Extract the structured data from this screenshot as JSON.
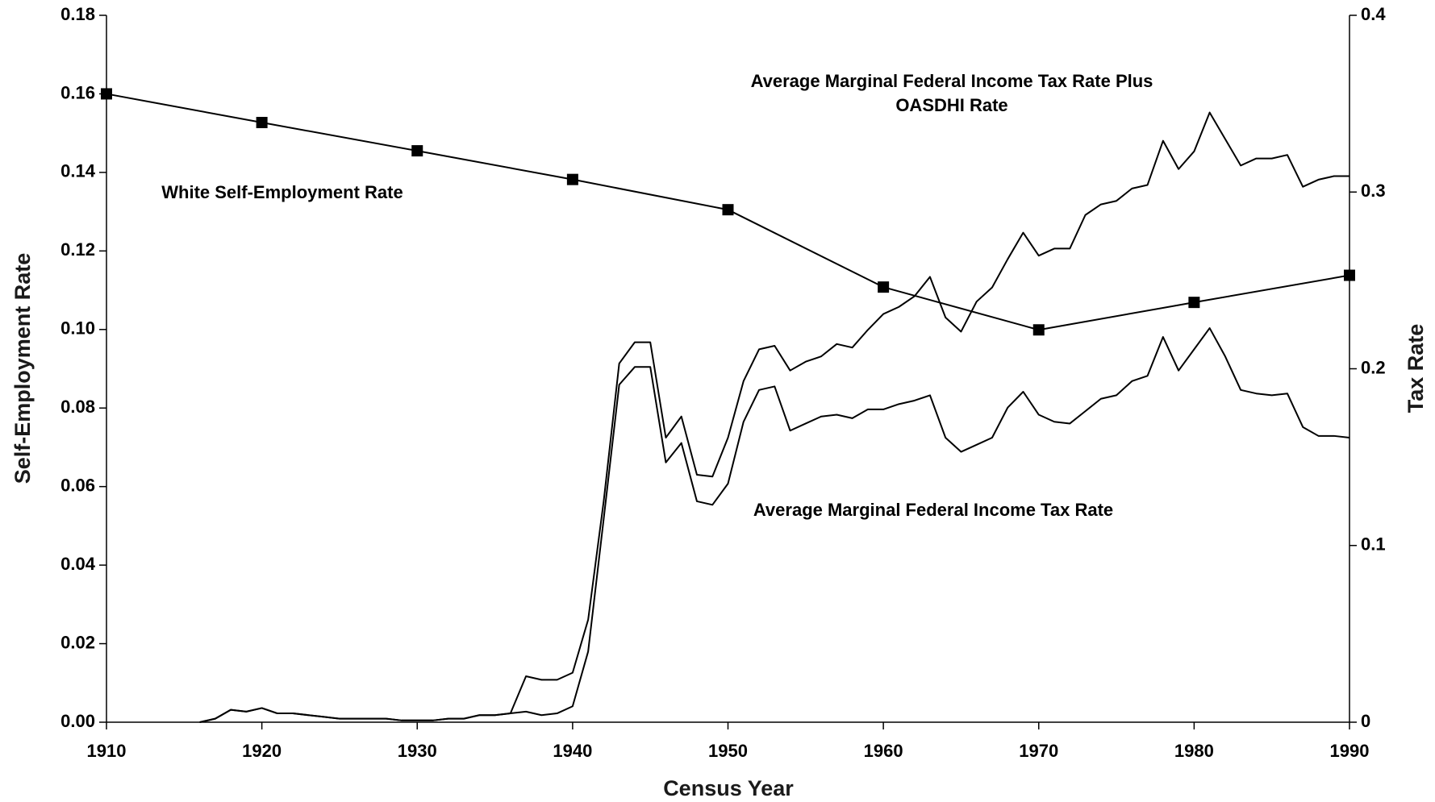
{
  "chart_data": {
    "type": "line",
    "xlabel": "Census Year",
    "ylabel": "Self-Employment Rate",
    "y2label": "Tax Rate",
    "xlim": [
      1910,
      1990
    ],
    "xticks": [
      1910,
      1920,
      1930,
      1940,
      1950,
      1960,
      1970,
      1980,
      1990
    ],
    "ylim": [
      0,
      0.18
    ],
    "yticks": [
      {
        "value": 0,
        "label": "0.00"
      },
      0.02,
      0.04,
      0.06,
      0.08,
      {
        "value": 0.1,
        "label": "0.10"
      },
      0.12,
      0.14,
      0.16,
      0.18
    ],
    "y2lim": [
      0,
      0.4
    ],
    "y2ticks": [
      0,
      0.1,
      0.2,
      0.3,
      0.4
    ],
    "series": [
      {
        "name": "White Self-Employment Rate",
        "color": "#000000",
        "marker": "square",
        "x": [
          1910,
          1920,
          1930,
          1940,
          1950,
          1960,
          1970,
          1980,
          1990
        ],
        "values": [
          0.16,
          0.1527,
          0.1455,
          0.1382,
          0.1305,
          0.1108,
          0.0999,
          0.1069,
          0.1138
        ]
      },
      {
        "name": "Average Marginal Federal Income Tax Rate Plus OASDHI Rate",
        "color": "#000000",
        "axis": "y2",
        "x": [
          1916,
          1917,
          1918,
          1919,
          1920,
          1921,
          1922,
          1923,
          1924,
          1925,
          1926,
          1927,
          1928,
          1929,
          1930,
          1931,
          1932,
          1933,
          1934,
          1935,
          1936,
          1937,
          1938,
          1939,
          1940,
          1941,
          1942,
          1943,
          1944,
          1945,
          1946,
          1947,
          1948,
          1949,
          1950,
          1951,
          1952,
          1953,
          1954,
          1955,
          1956,
          1957,
          1958,
          1959,
          1960,
          1961,
          1962,
          1963,
          1964,
          1965,
          1966,
          1967,
          1968,
          1969,
          1970,
          1971,
          1972,
          1973,
          1974,
          1975,
          1976,
          1977,
          1978,
          1979,
          1980,
          1981,
          1982,
          1983,
          1984,
          1985,
          1986,
          1987,
          1988,
          1989,
          1990
        ],
        "values": [
          0,
          0.002,
          0.007,
          0.006,
          0.008,
          0.005,
          0.005,
          0.004,
          0.003,
          0.002,
          0.002,
          0.002,
          0.002,
          0.001,
          0.001,
          0.001,
          0.002,
          0.002,
          0.004,
          0.004,
          0.005,
          0.026,
          0.024,
          0.024,
          0.028,
          0.058,
          0.125,
          0.203,
          0.215,
          0.215,
          0.161,
          0.173,
          0.14,
          0.139,
          0.161,
          0.193,
          0.211,
          0.213,
          0.199,
          0.204,
          0.207,
          0.214,
          0.212,
          0.222,
          0.231,
          0.235,
          0.241,
          0.252,
          0.229,
          0.221,
          0.238,
          0.246,
          0.262,
          0.277,
          0.264,
          0.268,
          0.268,
          0.287,
          0.293,
          0.295,
          0.302,
          0.304,
          0.329,
          0.313,
          0.323,
          0.345,
          0.33,
          0.315,
          0.319,
          0.319,
          0.321,
          0.303,
          0.307,
          0.309,
          0.309
        ]
      },
      {
        "name": "Average Marginal Federal Income Tax Rate",
        "color": "#000000",
        "axis": "y2",
        "x": [
          1916,
          1917,
          1918,
          1919,
          1920,
          1921,
          1922,
          1923,
          1924,
          1925,
          1926,
          1927,
          1928,
          1929,
          1930,
          1931,
          1932,
          1933,
          1934,
          1935,
          1936,
          1937,
          1938,
          1939,
          1940,
          1941,
          1942,
          1943,
          1944,
          1945,
          1946,
          1947,
          1948,
          1949,
          1950,
          1951,
          1952,
          1953,
          1954,
          1955,
          1956,
          1957,
          1958,
          1959,
          1960,
          1961,
          1962,
          1963,
          1964,
          1965,
          1966,
          1967,
          1968,
          1969,
          1970,
          1971,
          1972,
          1973,
          1974,
          1975,
          1976,
          1977,
          1978,
          1979,
          1980,
          1981,
          1982,
          1983,
          1984,
          1985,
          1986,
          1987,
          1988,
          1989,
          1990
        ],
        "values": [
          0,
          0.002,
          0.007,
          0.006,
          0.008,
          0.005,
          0.005,
          0.004,
          0.003,
          0.002,
          0.002,
          0.002,
          0.002,
          0.001,
          0.001,
          0.001,
          0.002,
          0.002,
          0.004,
          0.004,
          0.005,
          0.006,
          0.004,
          0.005,
          0.009,
          0.04,
          0.115,
          0.191,
          0.201,
          0.201,
          0.147,
          0.158,
          0.125,
          0.123,
          0.135,
          0.17,
          0.188,
          0.19,
          0.165,
          0.169,
          0.173,
          0.174,
          0.172,
          0.177,
          0.177,
          0.18,
          0.182,
          0.185,
          0.161,
          0.153,
          0.157,
          0.161,
          0.178,
          0.187,
          0.174,
          0.17,
          0.169,
          0.176,
          0.183,
          0.185,
          0.193,
          0.196,
          0.218,
          0.199,
          0.211,
          0.223,
          0.207,
          0.188,
          0.186,
          0.185,
          0.186,
          0.167,
          0.162,
          0.162,
          0.161
        ]
      }
    ]
  }
}
